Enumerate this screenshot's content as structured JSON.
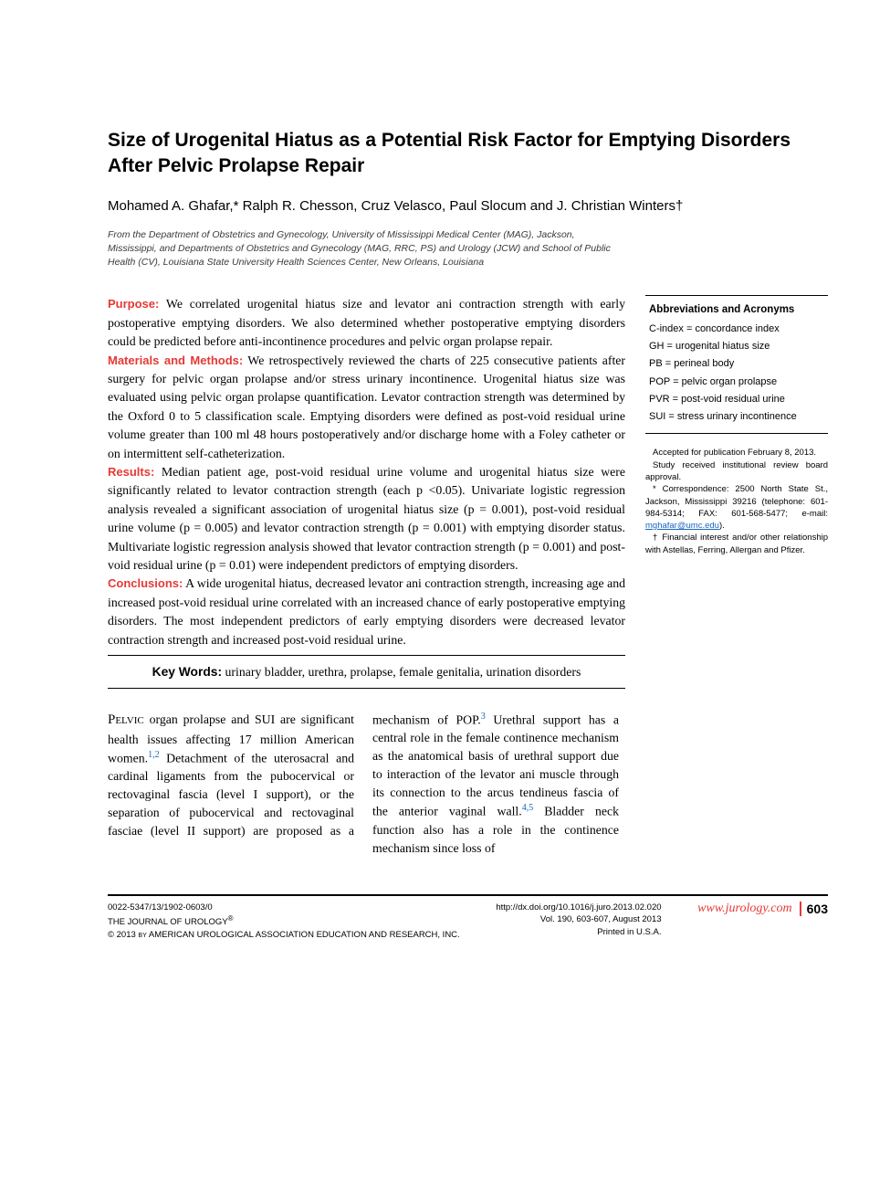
{
  "title": "Size of Urogenital Hiatus as a Potential Risk Factor for Emptying Disorders After Pelvic Prolapse Repair",
  "authors": "Mohamed A. Ghafar,* Ralph R. Chesson, Cruz Velasco, Paul Slocum and J. Christian Winters†",
  "affiliation": "From the Department of Obstetrics and Gynecology, University of Mississippi Medical Center (MAG), Jackson, Mississippi, and Departments of Obstetrics and Gynecology (MAG, RRC, PS) and Urology (JCW) and School of Public Health (CV), Louisiana State University Health Sciences Center, New Orleans, Louisiana",
  "abstract": {
    "purpose_label": "Purpose:",
    "purpose": "We correlated urogenital hiatus size and levator ani contraction strength with early postoperative emptying disorders. We also determined whether postoperative emptying disorders could be predicted before anti-incontinence procedures and pelvic organ prolapse repair.",
    "methods_label": "Materials and Methods:",
    "methods": "We retrospectively reviewed the charts of 225 consecutive patients after surgery for pelvic organ prolapse and/or stress urinary incontinence. Urogenital hiatus size was evaluated using pelvic organ prolapse quantification. Levator contraction strength was determined by the Oxford 0 to 5 classification scale. Emptying disorders were defined as post-void residual urine volume greater than 100 ml 48 hours postoperatively and/or discharge home with a Foley catheter or on intermittent self-catheterization.",
    "results_label": "Results:",
    "results": "Median patient age, post-void residual urine volume and urogenital hiatus size were significantly related to levator contraction strength (each p <0.05). Univariate logistic regression analysis revealed a significant association of urogenital hiatus size (p = 0.001), post-void residual urine volume (p = 0.005) and levator contraction strength (p = 0.001) with emptying disorder status. Multivariate logistic regression analysis showed that levator contraction strength (p = 0.001) and post-void residual urine (p = 0.01) were independent predictors of emptying disorders.",
    "conclusions_label": "Conclusions:",
    "conclusions": "A wide urogenital hiatus, decreased levator ani contraction strength, increasing age and increased post-void residual urine correlated with an increased chance of early postoperative emptying disorders. The most independent predictors of early emptying disorders were decreased levator contraction strength and increased post-void residual urine."
  },
  "keywords_label": "Key Words:",
  "keywords": "urinary bladder, urethra, prolapse, female genitalia, urination disorders",
  "abbrev": {
    "title": "Abbreviations and Acronyms",
    "items": [
      "C-index = concordance index",
      "GH = urogenital hiatus size",
      "PB = perineal body",
      "POP = pelvic organ prolapse",
      "PVR = post-void residual urine",
      "SUI = stress urinary incontinence"
    ]
  },
  "sidebar_notes": {
    "accepted": "Accepted for publication February 8, 2013.",
    "irb": "Study received institutional review board approval.",
    "correspondence": "* Correspondence: 2500 North State St., Jackson, Mississippi 39216 (telephone: 601-984-5314; FAX: 601-568-5477; e-mail: ",
    "email": "mghafar@umc.edu",
    "correspondence_end": ").",
    "financial": "† Financial interest and/or other relationship with Astellas, Ferring, Allergan and Pfizer."
  },
  "body": {
    "first_word": "Pelvic",
    "para1_a": " organ prolapse and SUI are significant health issues affecting 17 million American women.",
    "ref1": "1,2",
    "para1_b": " Detachment of the uterosacral and cardinal ligaments from the pubocervical or rectovaginal fascia (level I support), or the separation of pubocervical and rectovaginal fasciae (level II support) are proposed as a mechanism of POP.",
    "ref2": "3",
    "para1_c": " Urethral support has a central role in the female continence mechanism as the anatomical basis of urethral support due to interaction of the levator ani muscle through its connection to the arcus tendineus fascia of the anterior vaginal wall.",
    "ref3": "4,5",
    "para1_d": " Bladder neck function also has a role in the continence mechanism since loss of"
  },
  "footer": {
    "issn": "0022-5347/13/1902-0603/0",
    "journal": "THE JOURNAL OF UROLOGY",
    "reg": "®",
    "copyright": "© 2013 by AMERICAN UROLOGICAL ASSOCIATION EDUCATION AND RESEARCH, INC.",
    "doi": "http://dx.doi.org/10.1016/j.juro.2013.02.020",
    "vol": "Vol. 190, 603-607, August 2013",
    "printed": "Printed in U.S.A.",
    "url": "www.jurology.com",
    "page": "603"
  }
}
